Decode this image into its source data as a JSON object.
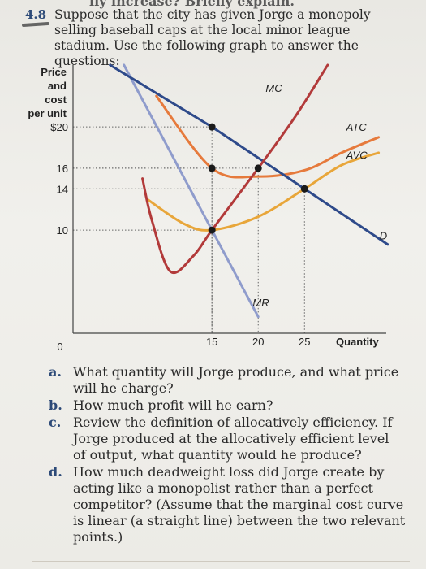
{
  "header_fragment": "lly increase? Briefly explain.",
  "question": {
    "number": "4.8",
    "text": "Suppose that the city has given Jorge a monopoly selling baseball caps at the local minor league stadium. Use the following graph to answer the questions:"
  },
  "chart_data": {
    "type": "line",
    "ylabel_lines": [
      "Price",
      "and",
      "cost",
      "per unit"
    ],
    "xlabel": "Quantity",
    "origin_label": "0",
    "y_ticks": [
      {
        "value": 20,
        "label": "$20"
      },
      {
        "value": 16,
        "label": "16"
      },
      {
        "value": 14,
        "label": "14"
      },
      {
        "value": 10,
        "label": "10"
      }
    ],
    "x_ticks": [
      {
        "value": 15,
        "label": "15"
      },
      {
        "value": 20,
        "label": "20"
      },
      {
        "value": 25,
        "label": "25"
      }
    ],
    "xlim": [
      0,
      34
    ],
    "ylim": [
      0,
      26
    ],
    "colors": {
      "D": "#2e4a8a",
      "MR": "#8f9ccc",
      "MC": "#b23a3a",
      "ATC": "#e67a3c",
      "AVC": "#e8a63a"
    },
    "series": [
      {
        "name": "D",
        "points": [
          [
            4,
            26
          ],
          [
            15,
            20
          ],
          [
            25,
            14
          ],
          [
            34,
            8.6
          ]
        ]
      },
      {
        "name": "MR",
        "points": [
          [
            5.5,
            26
          ],
          [
            15,
            10
          ],
          [
            20,
            1.6
          ]
        ]
      },
      {
        "name": "MC",
        "points": [
          [
            7.5,
            15
          ],
          [
            8.5,
            11
          ],
          [
            10.5,
            6
          ],
          [
            13,
            7.5
          ],
          [
            15,
            10
          ],
          [
            20,
            16
          ],
          [
            24,
            21
          ],
          [
            27.5,
            26
          ]
        ]
      },
      {
        "name": "ATC",
        "points": [
          [
            9,
            23
          ],
          [
            15,
            16
          ],
          [
            20,
            15.2
          ],
          [
            25,
            15.8
          ],
          [
            29,
            17.5
          ],
          [
            33,
            19
          ]
        ]
      },
      {
        "name": "AVC",
        "points": [
          [
            8,
            13
          ],
          [
            12,
            10.6
          ],
          [
            15,
            10
          ],
          [
            20,
            11.3
          ],
          [
            25,
            14
          ],
          [
            29,
            16.3
          ],
          [
            33,
            17.5
          ]
        ]
      }
    ],
    "points": [
      [
        15,
        20
      ],
      [
        15,
        16
      ],
      [
        20,
        16
      ],
      [
        15,
        10
      ],
      [
        25,
        14
      ]
    ],
    "curve_labels": [
      {
        "text": "MC",
        "x": 20.8,
        "y": 23.4
      },
      {
        "text": "ATC",
        "x": 29.5,
        "y": 19.6
      },
      {
        "text": "AVC",
        "x": 29.5,
        "y": 16.9
      },
      {
        "text": "D",
        "x": 33.1,
        "y": 9.1
      },
      {
        "text": "MR",
        "x": 19.4,
        "y": 2.6
      }
    ]
  },
  "parts": [
    {
      "letter": "a.",
      "text": "What quantity will Jorge produce, and what price will he charge?"
    },
    {
      "letter": "b.",
      "text": "How much profit will he earn?"
    },
    {
      "letter": "c.",
      "text": "Review the definition of allocatively efficiency. If Jorge produced at the allocatively efficient level of output, what quantity would he produce?"
    },
    {
      "letter": "d.",
      "text": "How much deadweight loss did Jorge create by acting like a monopolist rather than a perfect competitor? (Assume that the marginal cost curve is linear (a straight line) between the two relevant points.)"
    }
  ]
}
